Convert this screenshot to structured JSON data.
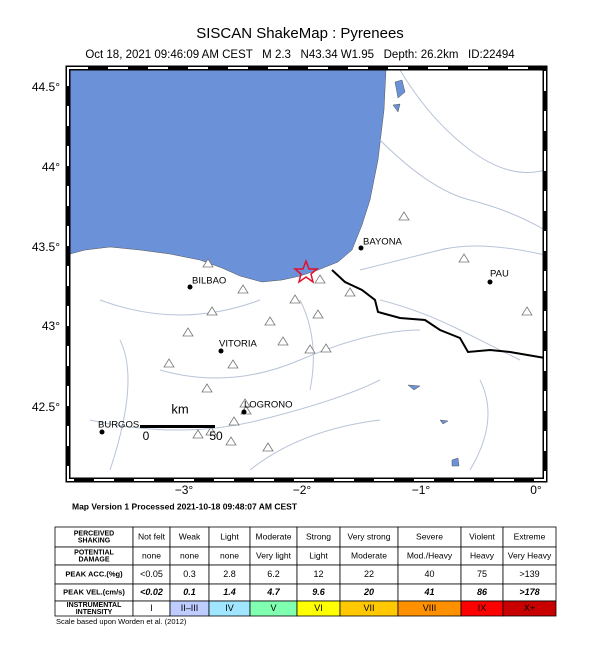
{
  "header": {
    "title": "SISCAN ShakeMap : Pyrenees",
    "subtitle": "Oct 18, 2021 09:46:09 AM CEST   M 2.3   N43.34 W1.95   Depth: 26.2km   ID:22494"
  },
  "map": {
    "lat_labels": [
      "44.5°",
      "44°",
      "43.5°",
      "43°",
      "42.5°"
    ],
    "lon_labels": [
      "−3°",
      "−2°",
      "−1°",
      "0°"
    ],
    "cities": [
      "BILBAO",
      "VITORIA",
      "LOGRONO",
      "BURGOS",
      "BAYONA",
      "PAU"
    ],
    "scale": {
      "unit": "km",
      "start": "0",
      "end": "50"
    },
    "version": "Map Version 1 Processed 2021-10-18 09:48:07 AM CEST"
  },
  "legend": {
    "rows": [
      {
        "label": [
          "PERCEIVED",
          "SHAKING"
        ],
        "cells": [
          "Not felt",
          "Weak",
          "Light",
          "Moderate",
          "Strong",
          "Very strong",
          "Severe",
          "Violent",
          "Extreme"
        ]
      },
      {
        "label": [
          "POTENTIAL",
          "DAMAGE"
        ],
        "cells": [
          "none",
          "none",
          "none",
          "Very light",
          "Light",
          "Moderate",
          "Mod./Heavy",
          "Heavy",
          "Very Heavy"
        ]
      },
      {
        "label": [
          "PEAK ACC.(%g)"
        ],
        "cells": [
          "<0.05",
          "0.3",
          "2.8",
          "6.2",
          "12",
          "22",
          "40",
          "75",
          ">139"
        ]
      },
      {
        "label": [
          "PEAK VEL.(cm/s)"
        ],
        "cells": [
          "<0.02",
          "0.1",
          "1.4",
          "4.7",
          "9.6",
          "20",
          "41",
          "86",
          ">178"
        ]
      },
      {
        "label": [
          "INSTRUMENTAL",
          "INTENSITY"
        ],
        "cells": [
          "I",
          "II–III",
          "IV",
          "V",
          "VI",
          "VII",
          "VIII",
          "IX",
          "X+"
        ]
      }
    ],
    "colors": [
      "#ffffff",
      "#bfccff",
      "#a0e6ff",
      "#80ffb0",
      "#ffff00",
      "#ffc800",
      "#ff9100",
      "#ff0000",
      "#c80000"
    ],
    "footnote": "Scale based upon Worden et al. (2012)"
  }
}
